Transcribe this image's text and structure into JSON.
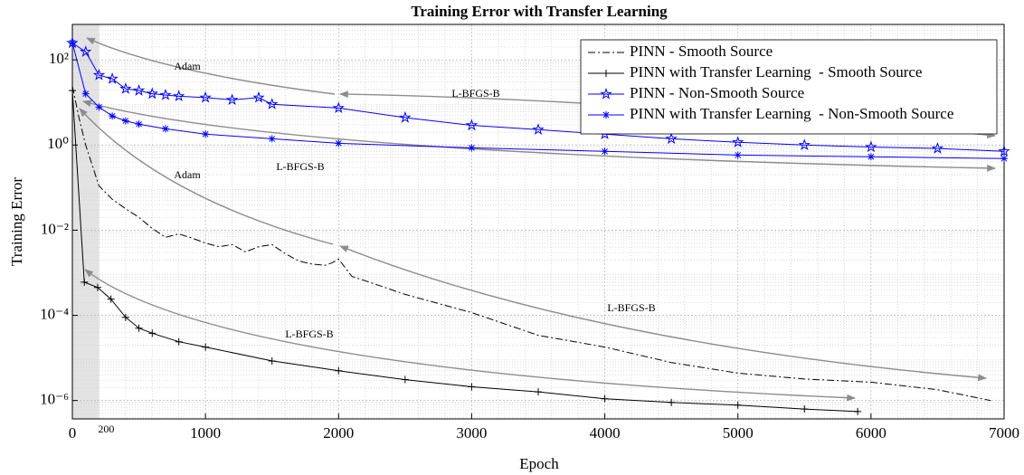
{
  "chart_data": {
    "type": "line",
    "title": "Training Error with Transfer Learning",
    "xlabel": "Epoch",
    "ylabel": "Training Error",
    "xlim": [
      0,
      7000
    ],
    "xticks": [
      0,
      1000,
      2000,
      3000,
      4000,
      5000,
      6000,
      7000
    ],
    "ylim": [
      3.7e-07,
      680
    ],
    "log_y": true,
    "yticks": [
      {
        "value": 1e-06,
        "label": "10⁻⁶"
      },
      {
        "value": 0.0001,
        "label": "10⁻⁴"
      },
      {
        "value": 0.01,
        "label": "10⁻²"
      },
      {
        "value": 1,
        "label": "10⁰"
      },
      {
        "value": 100,
        "label": "10²"
      }
    ],
    "grid": true,
    "minor_grid": true,
    "legend": "upper right",
    "shaded_span": [
      0,
      200
    ],
    "annotations": [
      "Adam",
      "L-BFGS-B",
      "Adam",
      "L-BFGS-B",
      "L-BFGS-B",
      "L-BFGS-B"
    ],
    "series": [
      {
        "name": "PINN - Smooth Source",
        "color": "#000000",
        "dash": "dashdot",
        "marker": "none",
        "x": [
          0,
          50,
          100,
          200,
          300,
          400,
          500,
          600,
          700,
          800,
          900,
          1000,
          1100,
          1200,
          1300,
          1400,
          1500,
          1600,
          1700,
          1800,
          1900,
          1950,
          2000,
          2100,
          2200,
          2500,
          3000,
          3500,
          4000,
          4500,
          5000,
          5500,
          6000,
          6500,
          6900
        ],
        "values": [
          24,
          4.3,
          1.0,
          0.11,
          0.053,
          0.032,
          0.02,
          0.011,
          0.0068,
          0.0082,
          0.0065,
          0.005,
          0.0041,
          0.0046,
          0.0031,
          0.0041,
          0.0046,
          0.0028,
          0.0019,
          0.0016,
          0.0015,
          0.0017,
          0.0021,
          0.00082,
          0.00065,
          0.00031,
          0.000116,
          3.4e-05,
          1.8e-05,
          7.8e-06,
          4.4e-06,
          3.2e-06,
          2.7e-06,
          1.8e-06,
          1e-06
        ]
      },
      {
        "name": "PINN with Transfer Learning  - Smooth Source",
        "color": "#000000",
        "dash": "solid",
        "marker": "plus",
        "x": [
          0,
          90,
          190,
          290,
          400,
          500,
          600,
          800,
          1000,
          1500,
          2000,
          2500,
          3000,
          3500,
          4000,
          4500,
          5000,
          5500,
          5900
        ],
        "values": [
          19,
          0.0006,
          0.00045,
          0.00024,
          9e-05,
          5e-05,
          3.8e-05,
          2.4e-05,
          1.8e-05,
          8.5e-06,
          5e-06,
          3.1e-06,
          2.1e-06,
          1.6e-06,
          1.1e-06,
          9e-07,
          7.8e-07,
          6.3e-07,
          5.5e-07
        ]
      },
      {
        "name": "PINN - Non-Smooth Source",
        "color": "#0000ff",
        "dash": "solid",
        "marker": "pentagram",
        "x": [
          0,
          100,
          200,
          300,
          400,
          500,
          600,
          700,
          800,
          1000,
          1200,
          1400,
          1500,
          2000,
          2500,
          3000,
          3500,
          4000,
          4500,
          5000,
          5500,
          6000,
          6500,
          7000
        ],
        "values": [
          250,
          155,
          44,
          36,
          21,
          19,
          16,
          15,
          14,
          13,
          11.5,
          13,
          9.1,
          7.4,
          4.4,
          2.9,
          2.3,
          1.8,
          1.4,
          1.16,
          1.0,
          0.9,
          0.83,
          0.71
        ]
      },
      {
        "name": "PINN with Transfer Learning  - Non-Smooth Source",
        "color": "#0000ff",
        "dash": "solid",
        "marker": "asterisk",
        "x": [
          0,
          100,
          200,
          300,
          400,
          500,
          700,
          1000,
          1500,
          2000,
          3000,
          4000,
          5000,
          6000,
          7000
        ],
        "values": [
          250,
          16,
          7.8,
          4.8,
          3.7,
          3.1,
          2.4,
          1.8,
          1.4,
          1.1,
          0.86,
          0.71,
          0.58,
          0.53,
          0.48
        ]
      }
    ]
  }
}
